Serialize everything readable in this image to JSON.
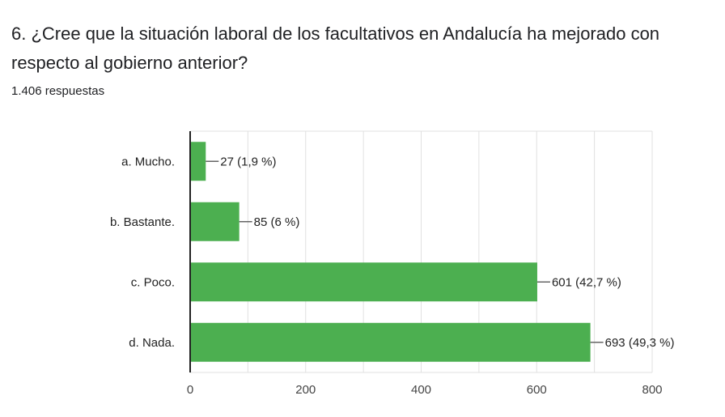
{
  "question": {
    "title": "6. ¿Cree que la situación laboral de los facultativos en Andalucía ha mejorado con respecto al gobierno anterior?",
    "response_count": "1.406 respuestas"
  },
  "colors": {
    "bar": "#4caf50",
    "grid": "#e0e0e0",
    "axis": "#222222",
    "leader": "#666666"
  },
  "chart_data": {
    "type": "bar",
    "orientation": "horizontal",
    "categories": [
      "a. Mucho.",
      "b. Bastante.",
      "c. Poco.",
      "d. Nada."
    ],
    "values": [
      27,
      85,
      601,
      693
    ],
    "data_labels": [
      "27 (1,9 %)",
      "85 (6 %)",
      "601 (42,7 %)",
      "693 (49,3 %)"
    ],
    "xlim": [
      0,
      800
    ],
    "x_ticks": [
      0,
      200,
      400,
      600,
      800
    ],
    "x_tick_labels": [
      "0",
      "200",
      "400",
      "600",
      "800"
    ],
    "grid": true
  }
}
